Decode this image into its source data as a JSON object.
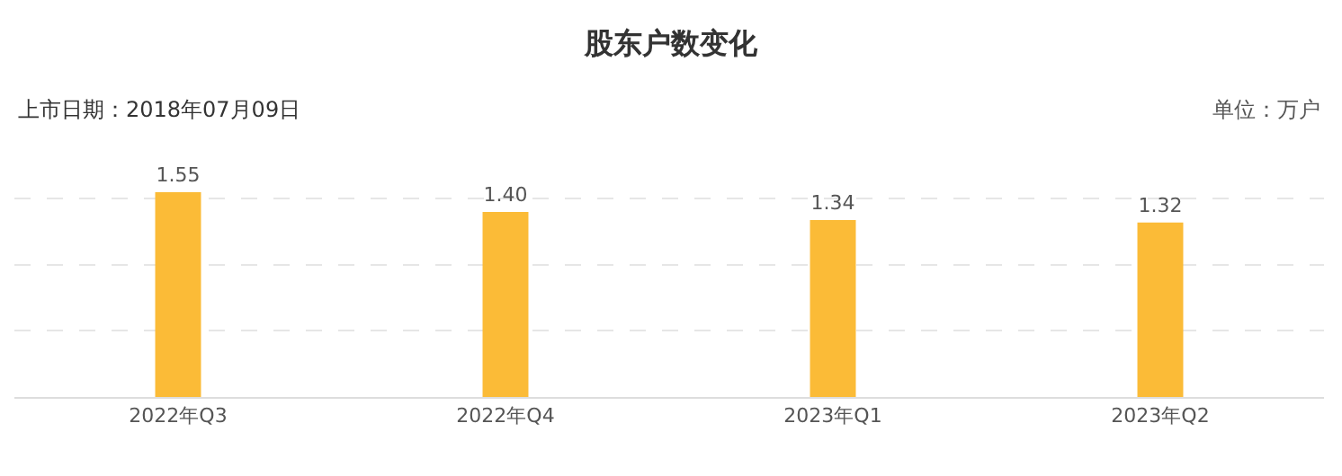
{
  "chart_data": {
    "type": "bar",
    "title": "股东户数变化",
    "annotations": [
      "上市日期：2018年07月09日",
      "单位：万户"
    ],
    "categories": [
      "2022年Q3",
      "2022年Q4",
      "2023年Q1",
      "2023年Q2"
    ],
    "values": [
      1.55,
      1.4,
      1.34,
      1.32
    ],
    "color": "#fbbb37",
    "value_labels": [
      "1.55",
      "1.40",
      "1.34",
      "1.32"
    ],
    "grid": "y",
    "tick_labels": "x"
  }
}
